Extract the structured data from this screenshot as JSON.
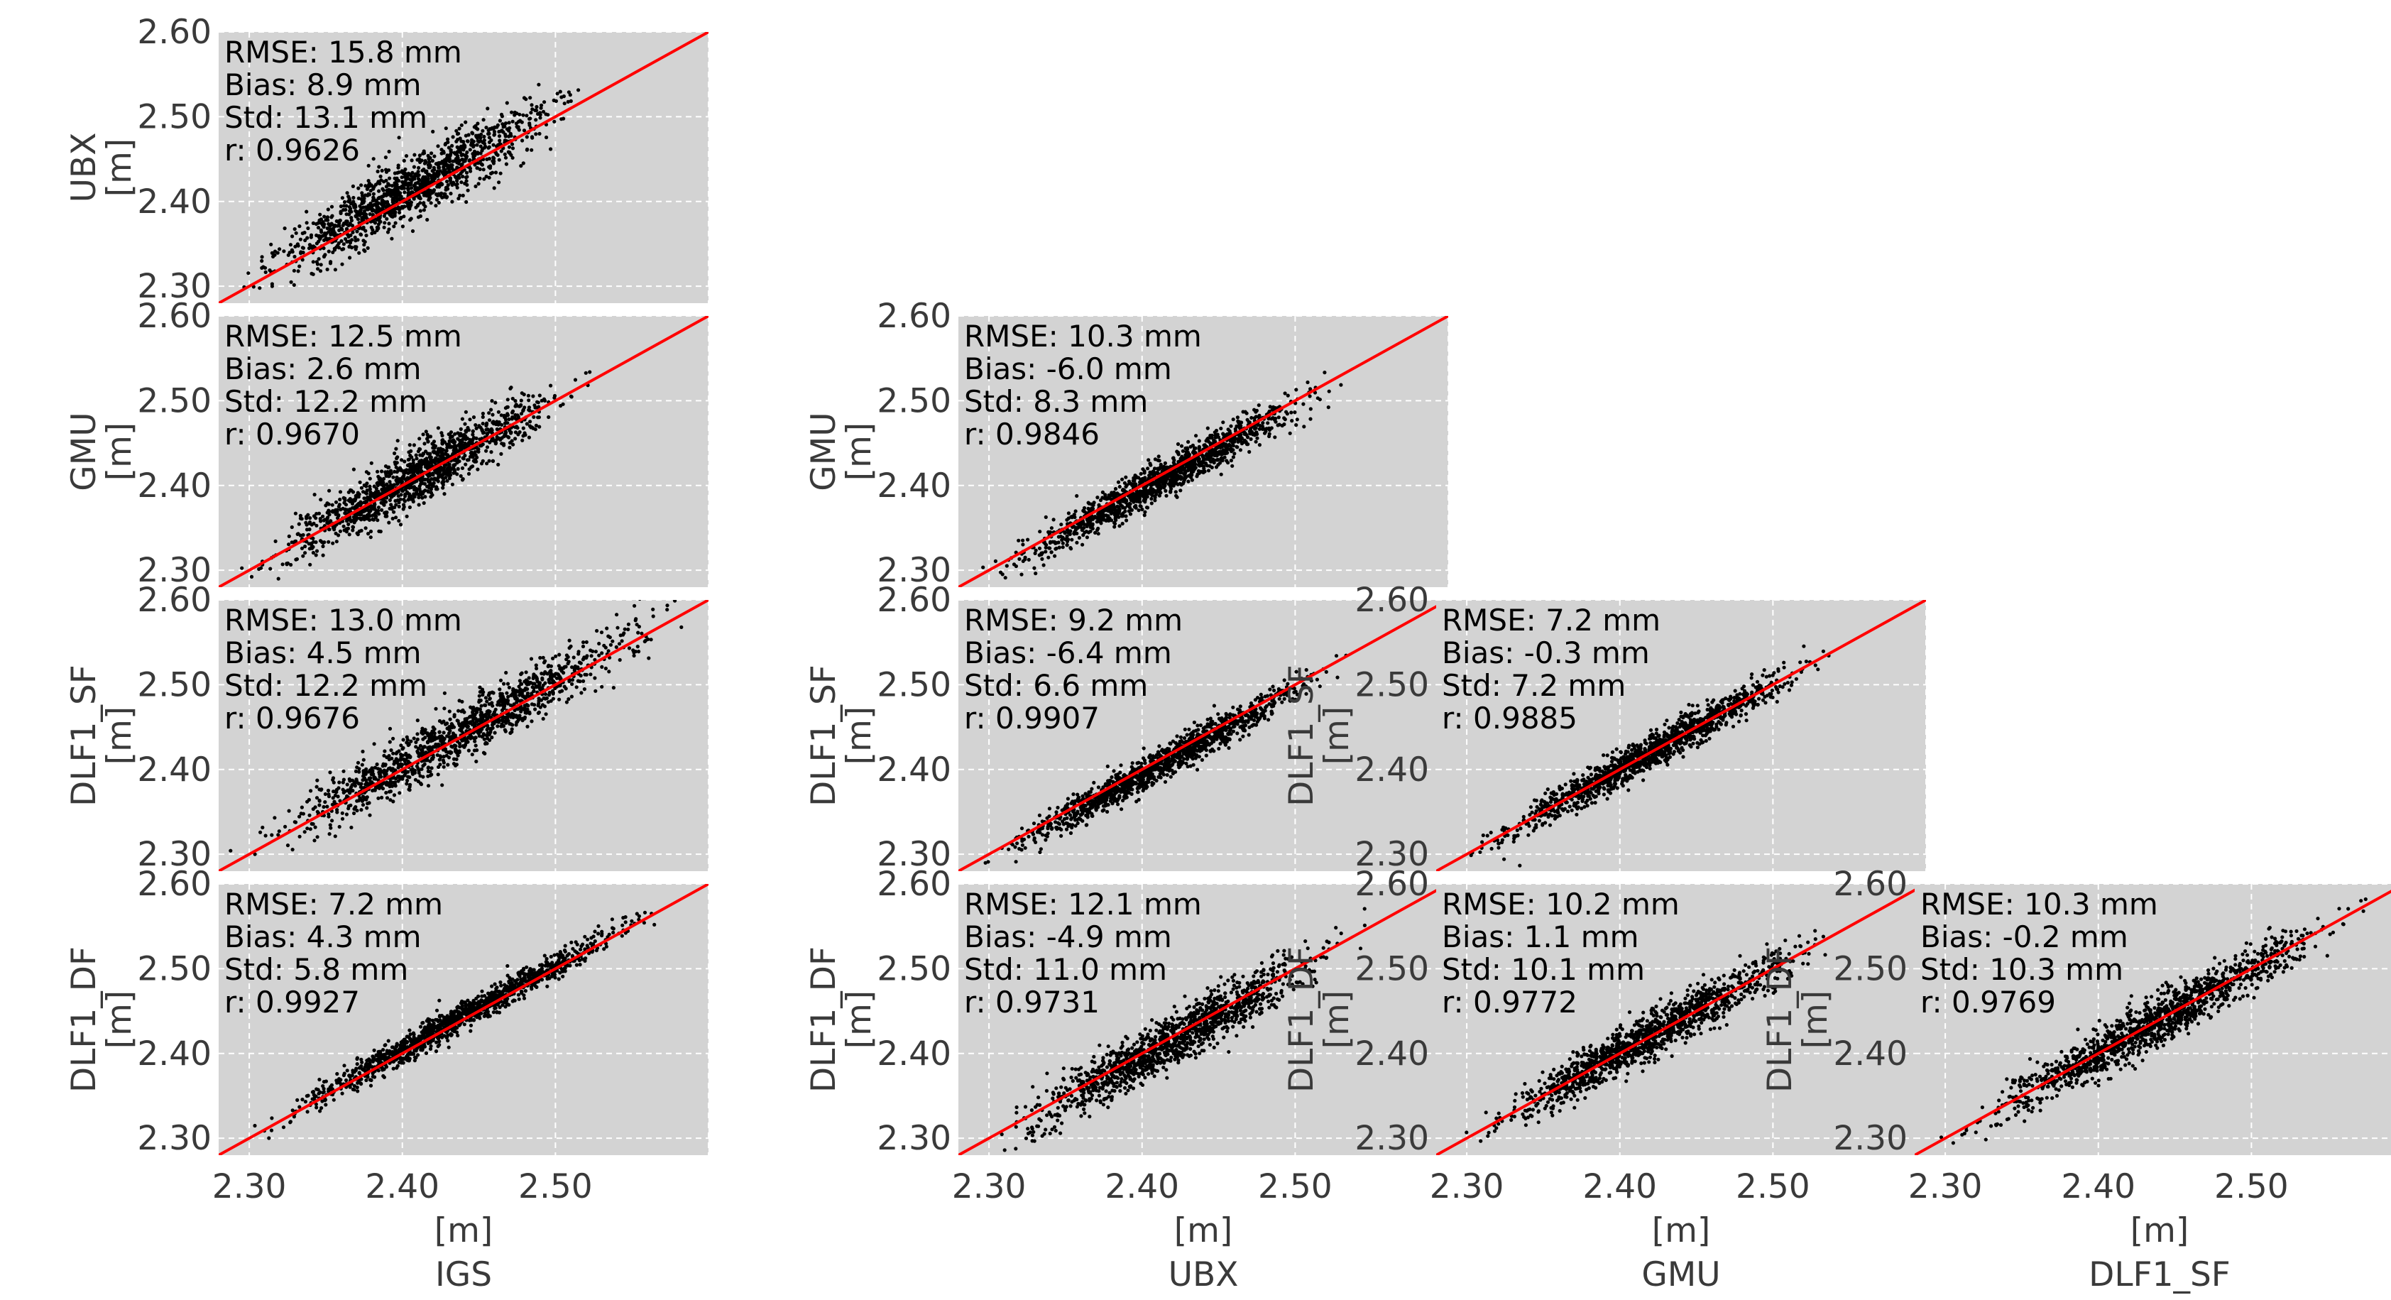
{
  "chart_data": {
    "type": "scatter",
    "layout": "lower-triangle scatter matrix",
    "x_units": "[m]",
    "y_units": "[m]",
    "axis_range": [
      2.28,
      2.6
    ],
    "x_ticks": [
      "2.30",
      "2.40",
      "2.50"
    ],
    "y_ticks": [
      "2.30",
      "2.40",
      "2.50",
      "2.60"
    ],
    "grid": true,
    "panel_background": "#d3d3d3",
    "point_color": "#000000",
    "reference_line_color": "#ff0000",
    "reference_line": "y = x",
    "columns": [
      "IGS",
      "UBX",
      "GMU",
      "DLF1_SF"
    ],
    "rows": [
      "UBX",
      "GMU",
      "DLF1_SF",
      "DLF1_DF"
    ],
    "panels": [
      {
        "x": "IGS",
        "y": "UBX",
        "rmse": "RMSE: 15.8 mm",
        "bias": "Bias: 8.9 mm",
        "std": "Std: 13.1 mm",
        "r": "r: 0.9626",
        "x_span": [
          2.28,
          2.53
        ],
        "spread": 0.018,
        "offset": 0.009
      },
      {
        "x": "IGS",
        "y": "GMU",
        "rmse": "RMSE: 12.5 mm",
        "bias": "Bias: 2.6 mm",
        "std": "Std: 12.2 mm",
        "r": "r: 0.9670",
        "x_span": [
          2.285,
          2.535
        ],
        "spread": 0.016,
        "offset": 0.003
      },
      {
        "x": "UBX",
        "y": "GMU",
        "rmse": "RMSE: 10.3 mm",
        "bias": "Bias: -6.0 mm",
        "std": "Std: 8.3 mm",
        "r": "r: 0.9846",
        "x_span": [
          2.285,
          2.545
        ],
        "spread": 0.011,
        "offset": -0.006
      },
      {
        "x": "IGS",
        "y": "DLF1_SF",
        "rmse": "RMSE: 13.0 mm",
        "bias": "Bias: 4.5 mm",
        "std": "Std: 12.2 mm",
        "r": "r: 0.9676",
        "x_span": [
          2.28,
          2.595
        ],
        "spread": 0.016,
        "offset": 0.005
      },
      {
        "x": "UBX",
        "y": "DLF1_SF",
        "rmse": "RMSE: 9.2 mm",
        "bias": "Bias: -6.4 mm",
        "std": "Std: 6.6 mm",
        "r": "r: 0.9907",
        "x_span": [
          2.285,
          2.545
        ],
        "spread": 0.009,
        "offset": -0.006
      },
      {
        "x": "GMU",
        "y": "DLF1_SF",
        "rmse": "RMSE: 7.2 mm",
        "bias": "Bias: -0.3 mm",
        "std": "Std: 7.2 mm",
        "r": "r: 0.9885",
        "x_span": [
          2.29,
          2.55
        ],
        "spread": 0.01,
        "offset": 0.0
      },
      {
        "x": "IGS",
        "y": "DLF1_DF",
        "rmse": "RMSE: 7.2 mm",
        "bias": "Bias: 4.3 mm",
        "std": "Std: 5.8 mm",
        "r": "r: 0.9927",
        "x_span": [
          2.295,
          2.58
        ],
        "spread": 0.008,
        "offset": 0.004
      },
      {
        "x": "UBX",
        "y": "DLF1_DF",
        "rmse": "RMSE: 12.1 mm",
        "bias": "Bias: -4.9 mm",
        "std": "Std: 11.0 mm",
        "r": "r: 0.9731",
        "x_span": [
          2.29,
          2.55
        ],
        "spread": 0.015,
        "offset": -0.005
      },
      {
        "x": "GMU",
        "y": "DLF1_DF",
        "rmse": "RMSE: 10.2 mm",
        "bias": "Bias: 1.1 mm",
        "std": "Std: 10.1 mm",
        "r": "r: 0.9772",
        "x_span": [
          2.29,
          2.55
        ],
        "spread": 0.013,
        "offset": 0.001
      },
      {
        "x": "DLF1_SF",
        "y": "DLF1_DF",
        "rmse": "RMSE: 10.3 mm",
        "bias": "Bias: -0.2 mm",
        "std": "Std: 10.3 mm",
        "r": "r: 0.9769",
        "x_span": [
          2.285,
          2.59
        ],
        "spread": 0.014,
        "offset": 0.0
      }
    ]
  }
}
